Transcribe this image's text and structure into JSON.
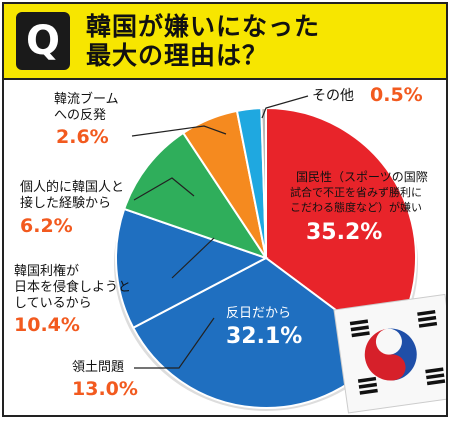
{
  "header": {
    "badge": "Q",
    "title_line1": "韓国が嫌いになった",
    "title_line2": "最大の理由は？"
  },
  "colors": {
    "header_bg": "#f7e600",
    "red": "#e8242a",
    "blue": "#1f6fc0",
    "green": "#2fae5b",
    "orange": "#f58a1f",
    "lightblue": "#1fa8e0",
    "gray": "#b8b8b8",
    "percent_text": "#f25a1f"
  },
  "chart_data": {
    "type": "pie",
    "unit": "%",
    "slices": [
      {
        "label": "国民性（スポーツの国際試合で不正を省みず勝利にこだわる態度など）が嫌い",
        "value": 35.2,
        "display": "35.2%",
        "color": "#e8242a"
      },
      {
        "label": "反日だから",
        "value": 32.1,
        "display": "32.1%",
        "color": "#1f6fc0"
      },
      {
        "label": "領土問題",
        "value": 13.0,
        "display": "13.0%",
        "color": "#1f6fc0"
      },
      {
        "label": "韓国利権が日本を侵食しようとしているから",
        "value": 10.4,
        "display": "10.4%",
        "color": "#2fae5b"
      },
      {
        "label": "個人的に韓国人と接した経験から",
        "value": 6.2,
        "display": "6.2%",
        "color": "#f58a1f"
      },
      {
        "label": "韓流ブームへの反発",
        "value": 2.6,
        "display": "2.6%",
        "color": "#1fa8e0"
      },
      {
        "label": "その他",
        "value": 0.5,
        "display": "0.5%",
        "color": "#b8b8b8"
      }
    ]
  },
  "labels": {
    "kokuminsei_l1": "国民性（スポーツの国際",
    "kokuminsei_l2": "試合で不正を省みず勝利に",
    "kokuminsei_l3": "こだわる態度など）が嫌い",
    "hannichi": "反日だから",
    "ryodo": "領土問題",
    "riken_l1": "韓国利権が",
    "riken_l2": "日本を侵食しようと",
    "riken_l3": "しているから",
    "kojin_l1": "個人的に韓国人と",
    "kojin_l2": "接した経験から",
    "hanryu_l1": "韓流ブーム",
    "hanryu_l2": "への反発",
    "sonota": "その他"
  }
}
